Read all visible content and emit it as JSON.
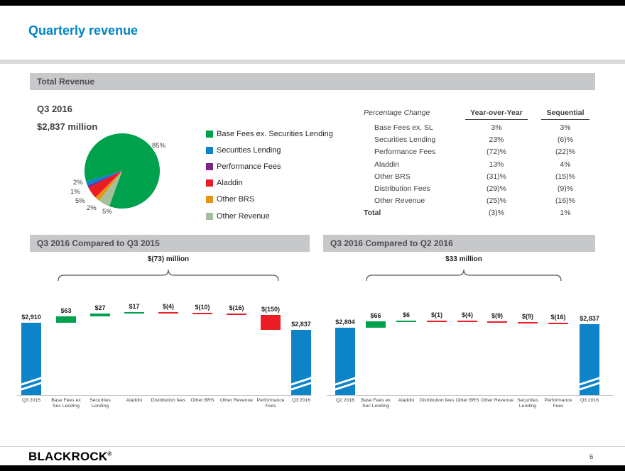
{
  "page": {
    "title": "Quarterly revenue",
    "brand": "BLACKROCK",
    "brand_reg": "®",
    "page_number": "6"
  },
  "total_revenue": {
    "header": "Total Revenue",
    "period_label": "Q3 2016",
    "amount_label": "$2,837 million",
    "table": {
      "title": "Percentage Change",
      "col_yoy": "Year-over-Year",
      "col_seq": "Sequential",
      "rows": [
        {
          "label": "Base Fees ex. SL",
          "yoy": "3%",
          "seq": "3%"
        },
        {
          "label": "Securities Lending",
          "yoy": "23%",
          "seq": "(6)%"
        },
        {
          "label": "Performance Fees",
          "yoy": "(72)%",
          "seq": "(22)%"
        },
        {
          "label": "Aladdin",
          "yoy": "13%",
          "seq": "4%"
        },
        {
          "label": "Other BRS",
          "yoy": "(31)%",
          "seq": "(15)%"
        },
        {
          "label": "Distribution Fees",
          "yoy": "(29)%",
          "seq": "(9)%"
        },
        {
          "label": "Other Revenue",
          "yoy": "(25)%",
          "seq": "(16)%"
        }
      ],
      "total": {
        "label": "Total",
        "yoy": "(3)%",
        "seq": "1%"
      }
    }
  },
  "comparisons": {
    "yoy_header": "Q3 2016 Compared to Q3 2015",
    "seq_header": "Q3 2016 Compared to Q2 2016"
  },
  "chart_data": [
    {
      "type": "pie",
      "title": "Q3 2016 Total Revenue mix",
      "subtitle": "$2,837 million",
      "labels": [
        "Base Fees ex. Securities Lending",
        "Securities Lending",
        "Performance Fees",
        "Aladdin",
        "Other BRS",
        "Other Revenue"
      ],
      "values": [
        85,
        2,
        1,
        5,
        2,
        5
      ],
      "unit": "%",
      "colors": [
        "#00a14d",
        "#0d83c8",
        "#7a2682",
        "#ec1c24",
        "#e8930f",
        "#a5bf9c"
      ],
      "legend_position": "right"
    },
    {
      "type": "waterfall",
      "title": "Q3 2016 Compared to Q3 2015",
      "annotation": "$(73) million",
      "unit": "$ millions",
      "axis_break": true,
      "categories": [
        "Q3 2015",
        "Base Fees ex Sec Lending",
        "Securities Lending",
        "Aladdin",
        "Distribution fees",
        "Other BRS",
        "Other Revenue",
        "Performance Fees",
        "Q3 2016"
      ],
      "labels": [
        "$2,910",
        "$63",
        "$27",
        "$17",
        "$(4)",
        "$(10)",
        "$(16)",
        "$(150)",
        "$2,837"
      ],
      "values": [
        2910,
        63,
        27,
        17,
        -4,
        -10,
        -16,
        -150,
        2837
      ],
      "bar_types": [
        "total",
        "delta",
        "delta",
        "delta",
        "delta",
        "delta",
        "delta",
        "delta",
        "total"
      ],
      "colors": {
        "total": "#0d83c8",
        "increase": "#00a14d",
        "decrease": "#ec1c24"
      }
    },
    {
      "type": "waterfall",
      "title": "Q3 2016 Compared to Q2 2016",
      "annotation": "$33 million",
      "unit": "$ millions",
      "axis_break": true,
      "categories": [
        "Q2 2016",
        "Base Fees ex Sec Lending",
        "Aladdin",
        "Distribution fees",
        "Other BRS",
        "Other Revenue",
        "Securities Lending",
        "Performance Fees",
        "Q3 2016"
      ],
      "labels": [
        "$2,804",
        "$66",
        "$6",
        "$(1)",
        "$(4)",
        "$(9)",
        "$(9)",
        "$(16)",
        "$2,837"
      ],
      "values": [
        2804,
        66,
        6,
        -1,
        -4,
        -9,
        -9,
        -16,
        2837
      ],
      "bar_types": [
        "total",
        "delta",
        "delta",
        "delta",
        "delta",
        "delta",
        "delta",
        "delta",
        "total"
      ],
      "colors": {
        "total": "#0d83c8",
        "increase": "#00a14d",
        "decrease": "#ec1c24"
      }
    }
  ]
}
